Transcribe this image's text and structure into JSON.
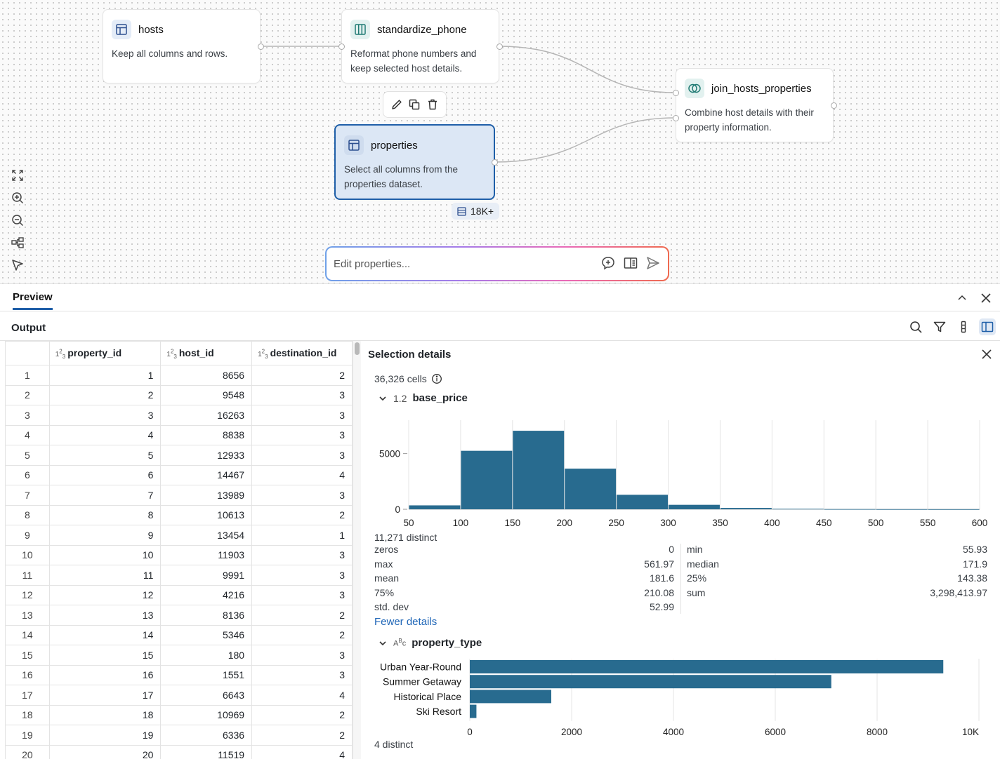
{
  "canvas": {
    "nodes": {
      "hosts": {
        "title": "hosts",
        "desc": "Keep all columns and rows."
      },
      "standardize": {
        "title": "standardize_phone",
        "desc": "Reformat phone numbers and keep selected host details."
      },
      "join": {
        "title": "join_hosts_properties",
        "desc": "Combine host details with their property information."
      },
      "properties": {
        "title": "properties",
        "desc": "Select all columns from the properties dataset."
      }
    },
    "row_badge": "18K+",
    "prompt_placeholder": "Edit properties..."
  },
  "preview": {
    "tab_label": "Preview",
    "output_label": "Output",
    "table": {
      "columns": [
        "property_id",
        "host_id",
        "destination_id"
      ],
      "rows": [
        [
          "1",
          "1",
          "8656",
          "2"
        ],
        [
          "2",
          "2",
          "9548",
          "3"
        ],
        [
          "3",
          "3",
          "16263",
          "3"
        ],
        [
          "4",
          "4",
          "8838",
          "3"
        ],
        [
          "5",
          "5",
          "12933",
          "3"
        ],
        [
          "6",
          "6",
          "14467",
          "4"
        ],
        [
          "7",
          "7",
          "13989",
          "3"
        ],
        [
          "8",
          "8",
          "10613",
          "2"
        ],
        [
          "9",
          "9",
          "13454",
          "1"
        ],
        [
          "10",
          "10",
          "11903",
          "3"
        ],
        [
          "11",
          "11",
          "9991",
          "3"
        ],
        [
          "12",
          "12",
          "4216",
          "3"
        ],
        [
          "13",
          "13",
          "8136",
          "2"
        ],
        [
          "14",
          "14",
          "5346",
          "2"
        ],
        [
          "15",
          "15",
          "180",
          "3"
        ],
        [
          "16",
          "16",
          "1551",
          "3"
        ],
        [
          "17",
          "17",
          "6643",
          "4"
        ],
        [
          "18",
          "18",
          "10969",
          "2"
        ],
        [
          "19",
          "19",
          "6336",
          "2"
        ],
        [
          "20",
          "20",
          "11519",
          "4"
        ]
      ]
    },
    "details": {
      "title": "Selection details",
      "cells": "36,326 cells",
      "field1": {
        "name": "base_price",
        "type": "1.2",
        "distinct": "11,271 distinct",
        "stats_left": [
          [
            "zeros",
            "0"
          ],
          [
            "max",
            "561.97"
          ],
          [
            "mean",
            "181.6"
          ],
          [
            "75%",
            "210.08"
          ],
          [
            "std. dev",
            "52.99"
          ]
        ],
        "stats_right": [
          [
            "min",
            "55.93"
          ],
          [
            "median",
            "171.9"
          ],
          [
            "25%",
            "143.38"
          ],
          [
            "sum",
            "3,298,413.97"
          ]
        ],
        "fewer_label": "Fewer details"
      },
      "field2": {
        "name": "property_type",
        "distinct": "4 distinct"
      }
    }
  },
  "chart_data": [
    {
      "type": "bar",
      "title": "base_price",
      "bins": [
        [
          50,
          100
        ],
        [
          100,
          150
        ],
        [
          150,
          200
        ],
        [
          200,
          250
        ],
        [
          250,
          300
        ],
        [
          300,
          350
        ],
        [
          350,
          400
        ],
        [
          400,
          450
        ],
        [
          450,
          500
        ],
        [
          500,
          550
        ],
        [
          550,
          600
        ]
      ],
      "values": [
        350,
        5250,
        7050,
        3650,
        1300,
        400,
        120,
        40,
        15,
        8,
        5
      ],
      "x_ticks": [
        50,
        100,
        150,
        200,
        250,
        300,
        350,
        400,
        450,
        500,
        550,
        600
      ],
      "y_ticks": [
        0,
        5000
      ],
      "xlim": [
        50,
        600
      ],
      "ylim": [
        0,
        8000
      ],
      "color": "#286b8f"
    },
    {
      "type": "bar",
      "orientation": "horizontal",
      "title": "property_type",
      "categories": [
        "Urban Year-Round",
        "Summer Getaway",
        "Historical Place",
        "Ski Resort"
      ],
      "values": [
        9300,
        7100,
        1600,
        130
      ],
      "x_ticks": [
        "0",
        "2000",
        "4000",
        "6000",
        "8000",
        "10K"
      ],
      "xlim": [
        0,
        10000
      ],
      "color": "#286b8f"
    }
  ]
}
